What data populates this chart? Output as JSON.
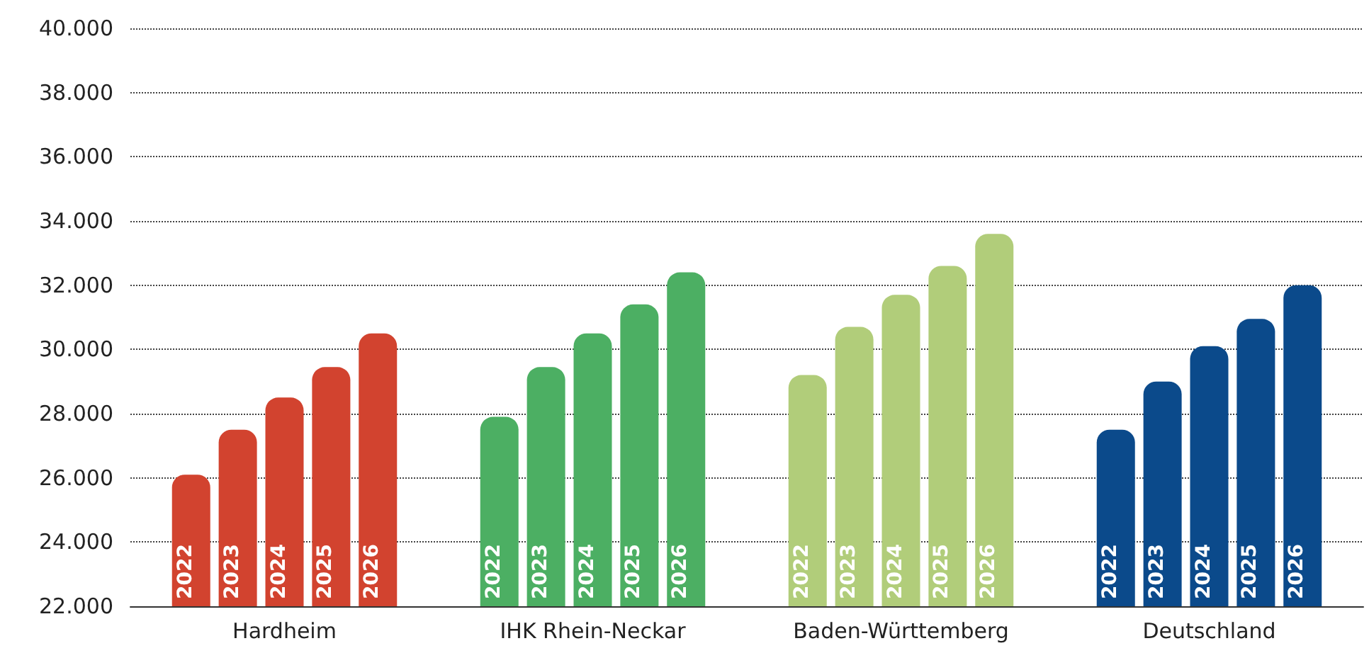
{
  "chart_data": {
    "type": "bar",
    "categories": [
      "Hardheim",
      "IHK Rhein-Neckar",
      "Baden-Württemberg",
      "Deutschland"
    ],
    "series": [
      {
        "name": "2022",
        "colors": [
          "#d2432f",
          "#4caf63",
          "#b1cd7a",
          "#0b4a8b"
        ],
        "values": [
          26100,
          27900,
          29200,
          27500
        ]
      },
      {
        "name": "2023",
        "colors": [
          "#d2432f",
          "#4caf63",
          "#b1cd7a",
          "#0b4a8b"
        ],
        "values": [
          27500,
          29450,
          30700,
          29000
        ]
      },
      {
        "name": "2024",
        "colors": [
          "#d2432f",
          "#4caf63",
          "#b1cd7a",
          "#0b4a8b"
        ],
        "values": [
          28500,
          30500,
          31700,
          30100
        ]
      },
      {
        "name": "2025",
        "colors": [
          "#d2432f",
          "#4caf63",
          "#b1cd7a",
          "#0b4a8b"
        ],
        "values": [
          29450,
          31400,
          32600,
          30950
        ]
      },
      {
        "name": "2026",
        "colors": [
          "#d2432f",
          "#4caf63",
          "#b1cd7a",
          "#0b4a8b"
        ],
        "values": [
          30500,
          32400,
          33600,
          32000
        ]
      }
    ],
    "ylim": [
      22000,
      40000
    ],
    "yticks": [
      {
        "value": 22000,
        "label": "22.000"
      },
      {
        "value": 24000,
        "label": "24.000"
      },
      {
        "value": 26000,
        "label": "26.000"
      },
      {
        "value": 28000,
        "label": "28.000"
      },
      {
        "value": 30000,
        "label": "30.000"
      },
      {
        "value": 32000,
        "label": "32.000"
      },
      {
        "value": 34000,
        "label": "34.000"
      },
      {
        "value": 36000,
        "label": "36.000"
      },
      {
        "value": 38000,
        "label": "38.000"
      },
      {
        "value": 40000,
        "label": "40.000"
      }
    ],
    "grid": "y"
  }
}
